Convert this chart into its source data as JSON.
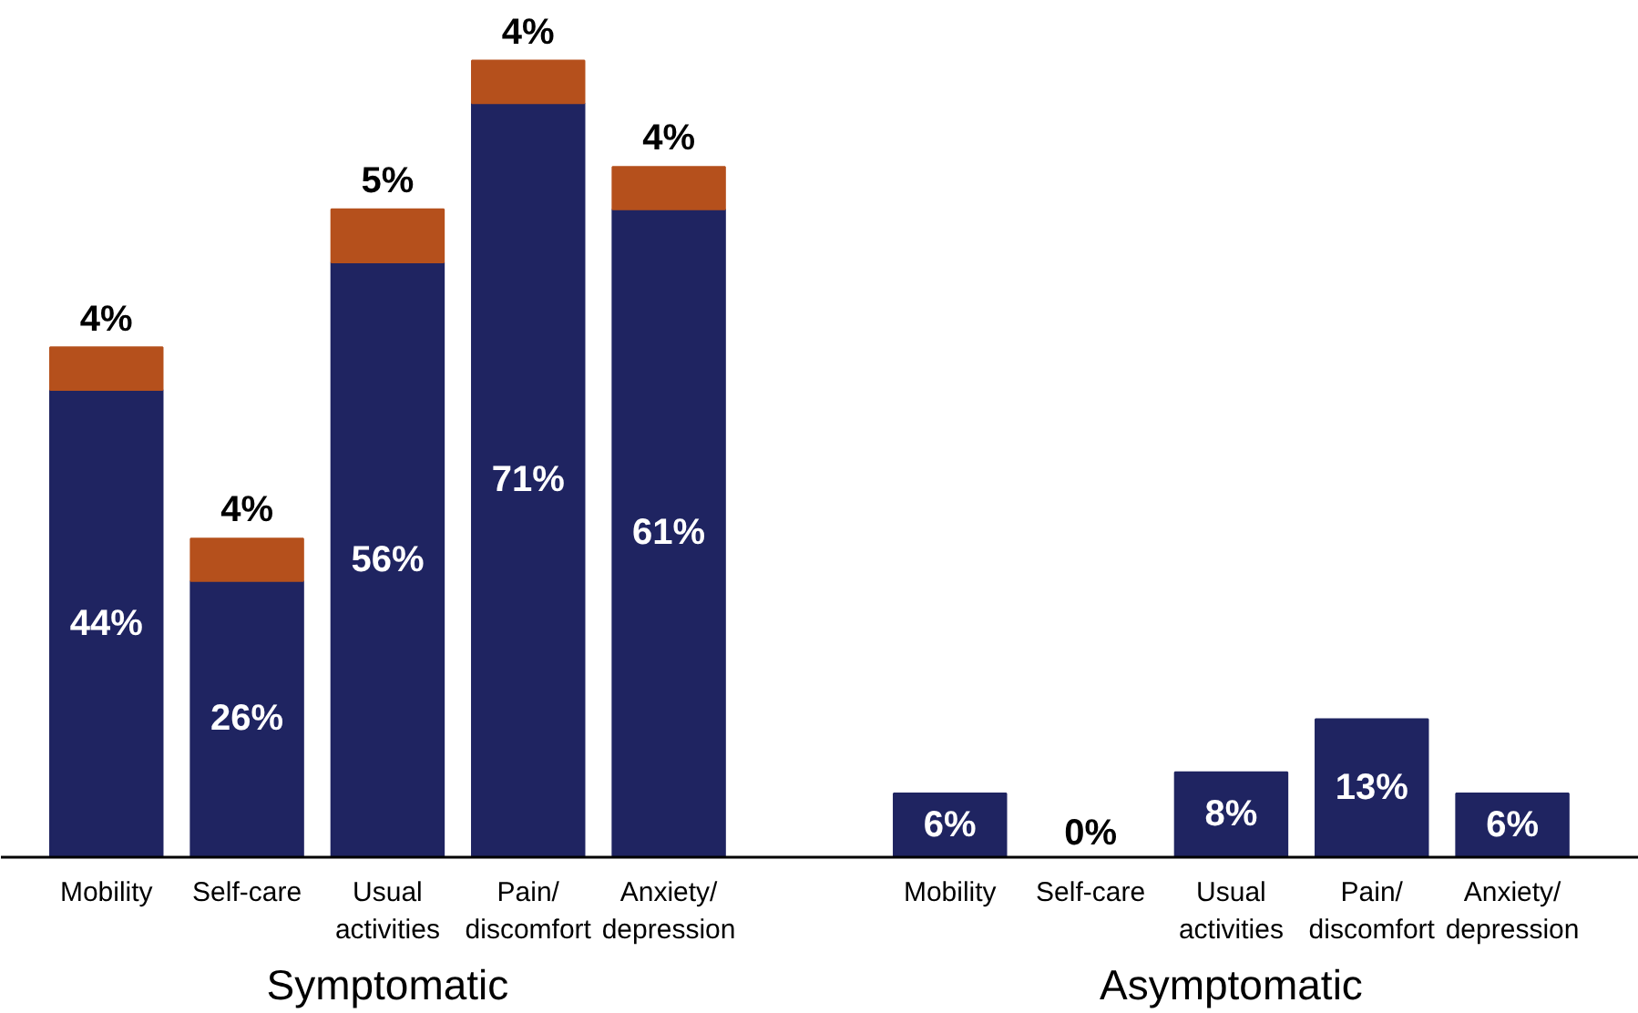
{
  "chart_data": {
    "type": "bar",
    "stacked": true,
    "categories": [
      "Mobility",
      "Self-care",
      "Usual\nactivities",
      "Pain/\ndiscomfort",
      "Anxiety/\ndepression",
      null,
      "Mobility",
      "Self-care",
      "Usual\nactivities",
      "Pain/\ndiscomfort",
      "Anxiety/\ndepression"
    ],
    "series": [
      {
        "color": "#1f2461",
        "values": [
          44,
          26,
          56,
          71,
          61,
          null,
          6,
          0,
          8,
          13,
          6
        ],
        "value_labels": [
          "44%",
          "26%",
          "56%",
          "71%",
          "61%",
          null,
          "6%",
          "0%",
          "8%",
          "13%",
          "6%"
        ]
      },
      {
        "color": "#b5501c",
        "values": [
          4,
          4,
          5,
          4,
          4,
          null,
          null,
          null,
          null,
          null,
          null
        ],
        "value_labels": [
          "4%",
          "4%",
          "5%",
          "4%",
          "4%",
          null,
          null,
          null,
          null,
          null,
          null
        ]
      }
    ],
    "annotations": [
      "Symptomatic",
      "Asymptomatic"
    ],
    "grid": false
  }
}
